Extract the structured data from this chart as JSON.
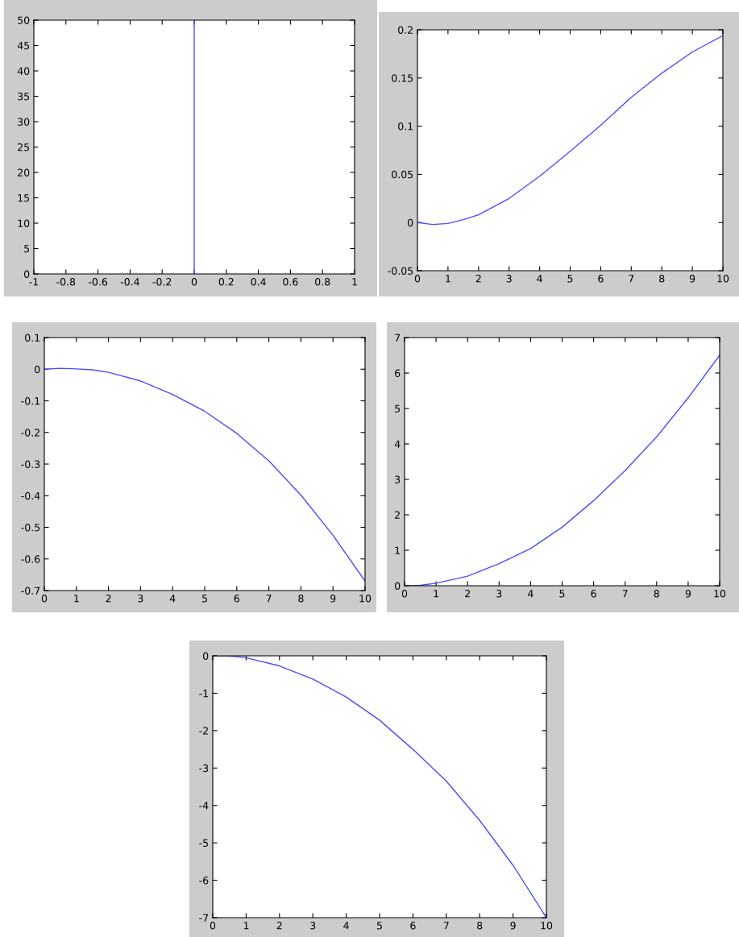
{
  "chart_data": [
    {
      "type": "line",
      "x": [
        0,
        0
      ],
      "series": [
        {
          "color": "#4b4bff",
          "values": [
            0,
            50
          ]
        }
      ],
      "xlim": [
        -1,
        1
      ],
      "ylim": [
        0,
        50
      ],
      "xticks": [
        -1,
        -0.8,
        -0.6,
        -0.4,
        -0.2,
        0,
        0.2,
        0.4,
        0.6,
        0.8,
        1
      ],
      "yticks": [
        0,
        5,
        10,
        15,
        20,
        25,
        30,
        35,
        40,
        45,
        50
      ]
    },
    {
      "type": "line",
      "x": [
        0,
        0.5,
        1,
        1.5,
        2,
        3,
        4,
        5,
        6,
        7,
        8,
        9,
        10
      ],
      "series": [
        {
          "color": "#4b4bff",
          "values": [
            0,
            -0.002,
            -0.001,
            0.003,
            0.008,
            0.025,
            0.048,
            0.074,
            0.101,
            0.13,
            0.155,
            0.177,
            0.194
          ]
        }
      ],
      "xlim": [
        0,
        10
      ],
      "ylim": [
        -0.05,
        0.2
      ],
      "xticks": [
        0,
        1,
        2,
        3,
        4,
        5,
        6,
        7,
        8,
        9,
        10
      ],
      "yticks": [
        -0.05,
        0,
        0.05,
        0.1,
        0.15,
        0.2
      ]
    },
    {
      "type": "line",
      "x": [
        0,
        0.5,
        1,
        1.5,
        2,
        3,
        4,
        5,
        6,
        7,
        8,
        9,
        10
      ],
      "series": [
        {
          "color": "#4b4bff",
          "values": [
            0,
            0.003,
            0.001,
            -0.002,
            -0.01,
            -0.037,
            -0.08,
            -0.133,
            -0.203,
            -0.29,
            -0.398,
            -0.525,
            -0.67
          ]
        }
      ],
      "xlim": [
        0,
        10
      ],
      "ylim": [
        -0.7,
        0.1
      ],
      "xticks": [
        0,
        1,
        2,
        3,
        4,
        5,
        6,
        7,
        8,
        9,
        10
      ],
      "yticks": [
        -0.7,
        -0.6,
        -0.5,
        -0.4,
        -0.3,
        -0.2,
        -0.1,
        0,
        0.1
      ]
    },
    {
      "type": "line",
      "x": [
        0,
        0.5,
        1,
        2,
        3,
        4,
        5,
        6,
        7,
        8,
        9,
        10
      ],
      "series": [
        {
          "color": "#4b4bff",
          "values": [
            0,
            0.01,
            0.07,
            0.27,
            0.62,
            1.05,
            1.65,
            2.4,
            3.25,
            4.2,
            5.3,
            6.5
          ]
        }
      ],
      "xlim": [
        0,
        10
      ],
      "ylim": [
        0,
        7
      ],
      "xticks": [
        0,
        1,
        2,
        3,
        4,
        5,
        6,
        7,
        8,
        9,
        10
      ],
      "yticks": [
        0,
        1,
        2,
        3,
        4,
        5,
        6,
        7
      ]
    },
    {
      "type": "line",
      "x": [
        0,
        0.5,
        1,
        2,
        3,
        4,
        5,
        6,
        7,
        8,
        9,
        10
      ],
      "series": [
        {
          "color": "#4b4bff",
          "values": [
            0,
            0,
            -0.05,
            -0.27,
            -0.62,
            -1.1,
            -1.72,
            -2.5,
            -3.35,
            -4.4,
            -5.6,
            -7
          ]
        }
      ],
      "xlim": [
        0,
        10
      ],
      "ylim": [
        -7,
        0
      ],
      "xticks": [
        0,
        1,
        2,
        3,
        4,
        5,
        6,
        7,
        8,
        9,
        10
      ],
      "yticks": [
        -7,
        -6,
        -5,
        -4,
        -3,
        -2,
        -1,
        0
      ]
    }
  ]
}
